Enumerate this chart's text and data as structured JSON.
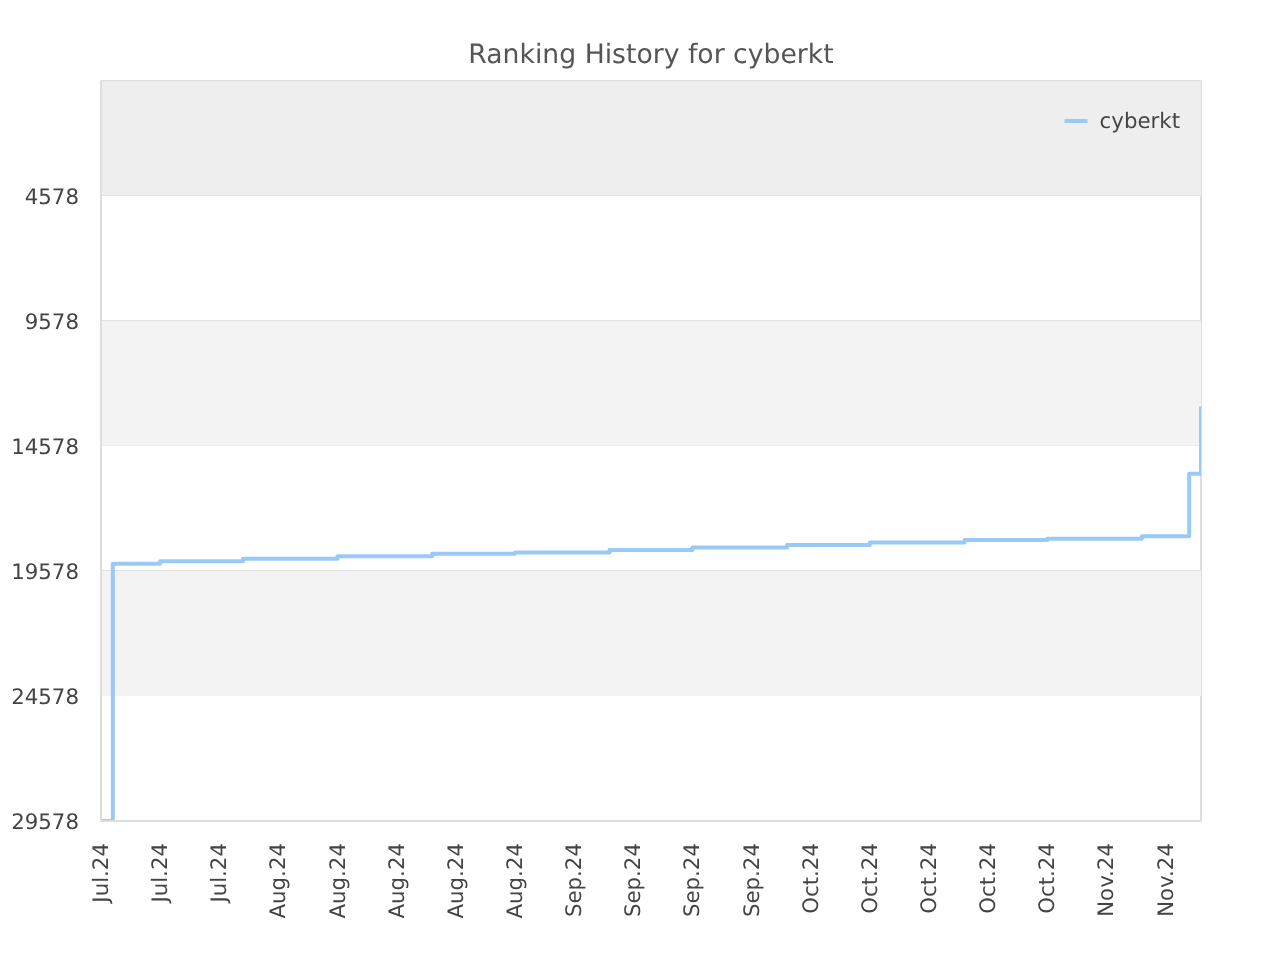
{
  "chart_data": {
    "type": "step",
    "title": "Ranking History for cyberkt",
    "categories": [
      "Jul.24",
      null,
      null,
      null,
      null,
      "Jul.24",
      null,
      null,
      null,
      null,
      "Jul.24",
      null,
      null,
      null,
      null,
      "Aug.24",
      null,
      null,
      null,
      null,
      "Aug.24",
      null,
      null,
      null,
      null,
      "Aug.24",
      null,
      null,
      null,
      null,
      "Aug.24",
      null,
      null,
      null,
      null,
      "Aug.24",
      null,
      null,
      null,
      null,
      "Sep.24",
      null,
      null,
      null,
      null,
      "Sep.24",
      null,
      null,
      null,
      null,
      "Sep.24",
      null,
      null,
      null,
      null,
      "Sep.24",
      null,
      null,
      null,
      null,
      "Oct.24",
      null,
      null,
      null,
      null,
      "Oct.24",
      null,
      null,
      null,
      null,
      "Oct.24",
      null,
      null,
      null,
      null,
      "Oct.24",
      null,
      null,
      null,
      null,
      "Oct.24",
      null,
      null,
      null,
      null,
      "Nov.24",
      null,
      null,
      null,
      null,
      "Nov.24",
      null,
      null,
      null
    ],
    "series": [
      {
        "name": "cyberkt",
        "color": "#99c9f5",
        "values": [
          29578,
          19300,
          19300,
          19300,
          19300,
          19200,
          19200,
          19200,
          19200,
          19200,
          19200,
          19200,
          19100,
          19100,
          19100,
          19100,
          19100,
          19100,
          19100,
          19100,
          19000,
          19000,
          19000,
          19000,
          19000,
          19000,
          19000,
          19000,
          18900,
          18900,
          18900,
          18900,
          18900,
          18900,
          18900,
          18850,
          18850,
          18850,
          18850,
          18850,
          18850,
          18850,
          18850,
          18750,
          18750,
          18750,
          18750,
          18750,
          18750,
          18750,
          18650,
          18650,
          18650,
          18650,
          18650,
          18650,
          18650,
          18650,
          18550,
          18550,
          18550,
          18550,
          18550,
          18550,
          18550,
          18450,
          18450,
          18450,
          18450,
          18450,
          18450,
          18450,
          18450,
          18350,
          18350,
          18350,
          18350,
          18350,
          18350,
          18350,
          18300,
          18300,
          18300,
          18300,
          18300,
          18300,
          18300,
          18300,
          18200,
          18200,
          18200,
          18200,
          15700,
          13000
        ]
      }
    ],
    "ylim": [
      29578,
      0
    ],
    "yticks": [
      4578,
      9578,
      14578,
      19578,
      24578,
      29578
    ],
    "bands": [
      {
        "axis": "y",
        "from": 0,
        "to": 4578,
        "color": "#eeeeee"
      },
      {
        "axis": "y",
        "from": 9578,
        "to": 14578,
        "color": "#f3f3f3"
      },
      {
        "axis": "y",
        "from": 19578,
        "to": 24578,
        "color": "#f3f3f3"
      }
    ],
    "grid": "y",
    "legend": "top right",
    "line_style": "solid",
    "marker": "none"
  }
}
